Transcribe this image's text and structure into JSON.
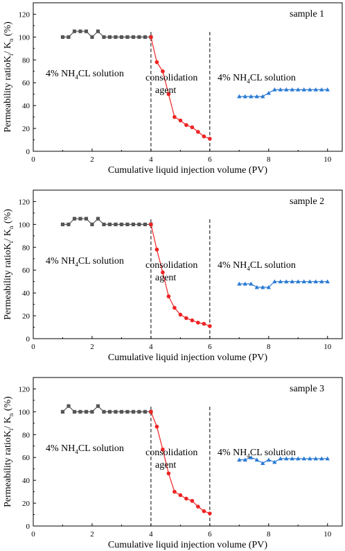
{
  "colors": {
    "black_series": "#555555",
    "red_series": "#ee2222",
    "blue_series": "#2a7ad5"
  },
  "chart_data": [
    {
      "type": "line",
      "sample_label": "sample 1",
      "xlabel": "Cumulative liquid injection volume (PV)",
      "ylabel": {
        "main": "Permeability ratioK",
        "sub1": "i",
        "sep": "/ K",
        "sub2": "n",
        "unit": " (%)"
      },
      "xlim": [
        0,
        10.5
      ],
      "ylim": [
        0,
        130
      ],
      "xticks": [
        "0",
        "2",
        "4",
        "6",
        "8",
        "10"
      ],
      "yticks": [
        "0",
        "20",
        "40",
        "60",
        "80",
        "100",
        "120"
      ],
      "vlines": [
        4,
        6
      ],
      "annotations": {
        "left": {
          "pre": "4% NH",
          "sub": "4",
          "post": "CL solution"
        },
        "middle": [
          "consolidation",
          "agent"
        ],
        "right": {
          "pre": "4% NH",
          "sub": "4",
          "post": "CL solution"
        }
      },
      "series": [
        {
          "marker": "square",
          "color": "#555555",
          "x": [
            1.0,
            1.2,
            1.4,
            1.6,
            1.8,
            2.0,
            2.2,
            2.4,
            2.6,
            2.8,
            3.0,
            3.2,
            3.4,
            3.6,
            3.8,
            4.0
          ],
          "y": [
            100,
            100,
            105,
            105,
            105,
            100,
            105,
            100,
            100,
            100,
            100,
            100,
            100,
            100,
            100,
            100
          ]
        },
        {
          "marker": "circle",
          "color": "#ee2222",
          "x": [
            4.0,
            4.2,
            4.4,
            4.6,
            4.8,
            5.0,
            5.2,
            5.4,
            5.6,
            5.8,
            6.0
          ],
          "y": [
            100,
            78,
            70,
            50,
            30,
            27,
            23,
            21,
            17,
            13,
            11
          ]
        },
        {
          "marker": "triangle",
          "color": "#2a7ad5",
          "x": [
            7.0,
            7.2,
            7.4,
            7.6,
            7.8,
            8.0,
            8.2,
            8.4,
            8.6,
            8.8,
            9.0,
            9.2,
            9.4,
            9.6,
            9.8,
            10.0
          ],
          "y": [
            48,
            48,
            48,
            48,
            48,
            51,
            54,
            54,
            54,
            54,
            54,
            54,
            54,
            54,
            54,
            54
          ]
        }
      ]
    },
    {
      "type": "line",
      "sample_label": "sample 2",
      "xlabel": "Cumulative liquid injection volume (PV)",
      "ylabel": {
        "main": "Permeability ratioK",
        "sub1": "i",
        "sep": "/ K",
        "sub2": "n",
        "unit": " (%)"
      },
      "xlim": [
        0,
        10.5
      ],
      "ylim": [
        0,
        130
      ],
      "xticks": [
        "0",
        "2",
        "4",
        "6",
        "8",
        "10"
      ],
      "yticks": [
        "0",
        "20",
        "40",
        "60",
        "80",
        "100",
        "120"
      ],
      "vlines": [
        4,
        6
      ],
      "annotations": {
        "left": {
          "pre": "4% NH",
          "sub": "4",
          "post": "CL solution"
        },
        "middle": [
          "consolidation",
          "agent"
        ],
        "right": {
          "pre": "4% NH",
          "sub": "4",
          "post": "CL solution"
        }
      },
      "series": [
        {
          "marker": "square",
          "color": "#555555",
          "x": [
            1.0,
            1.2,
            1.4,
            1.6,
            1.8,
            2.0,
            2.2,
            2.4,
            2.6,
            2.8,
            3.0,
            3.2,
            3.4,
            3.6,
            3.8,
            4.0
          ],
          "y": [
            100,
            100,
            105,
            105,
            105,
            100,
            105,
            100,
            100,
            100,
            100,
            100,
            100,
            100,
            100,
            100
          ]
        },
        {
          "marker": "circle",
          "color": "#ee2222",
          "x": [
            4.0,
            4.2,
            4.4,
            4.6,
            4.8,
            5.0,
            5.2,
            5.4,
            5.6,
            5.8,
            6.0
          ],
          "y": [
            100,
            78,
            58,
            37,
            27,
            21,
            18,
            16,
            14,
            13,
            11
          ]
        },
        {
          "marker": "triangle",
          "color": "#2a7ad5",
          "x": [
            7.0,
            7.2,
            7.4,
            7.6,
            7.8,
            8.0,
            8.2,
            8.4,
            8.6,
            8.8,
            9.0,
            9.2,
            9.4,
            9.6,
            9.8,
            10.0
          ],
          "y": [
            48,
            48,
            48,
            45,
            45,
            45,
            50,
            50,
            50,
            50,
            50,
            50,
            50,
            50,
            50,
            50
          ]
        }
      ]
    },
    {
      "type": "line",
      "sample_label": "sample 3",
      "xlabel": "Cumulative liquid injection volume (PV)",
      "ylabel": {
        "main": "Permeability ratioK",
        "sub1": "i",
        "sep": "/ K",
        "sub2": "n",
        "unit": " (%)"
      },
      "xlim": [
        0,
        10.5
      ],
      "ylim": [
        0,
        130
      ],
      "xticks": [
        "0",
        "2",
        "4",
        "6",
        "8",
        "10"
      ],
      "yticks": [
        "0",
        "20",
        "40",
        "60",
        "80",
        "100",
        "120"
      ],
      "vlines": [
        4,
        6
      ],
      "annotations": {
        "left": {
          "pre": "4% NH",
          "sub": "4",
          "post": "CL solution"
        },
        "middle": [
          "consolidation",
          "agent"
        ],
        "right": {
          "pre": "4% NH",
          "sub": "4",
          "post": "CL solution"
        }
      },
      "series": [
        {
          "marker": "square",
          "color": "#555555",
          "x": [
            1.0,
            1.2,
            1.4,
            1.6,
            1.8,
            2.0,
            2.2,
            2.4,
            2.6,
            2.8,
            3.0,
            3.2,
            3.4,
            3.6,
            3.8,
            4.0
          ],
          "y": [
            100,
            105,
            100,
            100,
            100,
            100,
            105,
            100,
            100,
            100,
            100,
            100,
            100,
            100,
            100,
            100
          ]
        },
        {
          "marker": "circle",
          "color": "#ee2222",
          "x": [
            4.0,
            4.2,
            4.4,
            4.6,
            4.8,
            5.0,
            5.2,
            5.4,
            5.6,
            5.8,
            6.0
          ],
          "y": [
            100,
            87,
            67,
            46,
            30,
            27,
            24,
            22,
            17,
            13,
            11
          ]
        },
        {
          "marker": "triangle",
          "color": "#2a7ad5",
          "x": [
            7.0,
            7.2,
            7.4,
            7.6,
            7.8,
            8.0,
            8.2,
            8.4,
            8.6,
            8.8,
            9.0,
            9.2,
            9.4,
            9.6,
            9.8,
            10.0
          ],
          "y": [
            58,
            58,
            60,
            58,
            55,
            58,
            56,
            59,
            59,
            59,
            59,
            59,
            59,
            59,
            59,
            59
          ]
        }
      ]
    }
  ]
}
